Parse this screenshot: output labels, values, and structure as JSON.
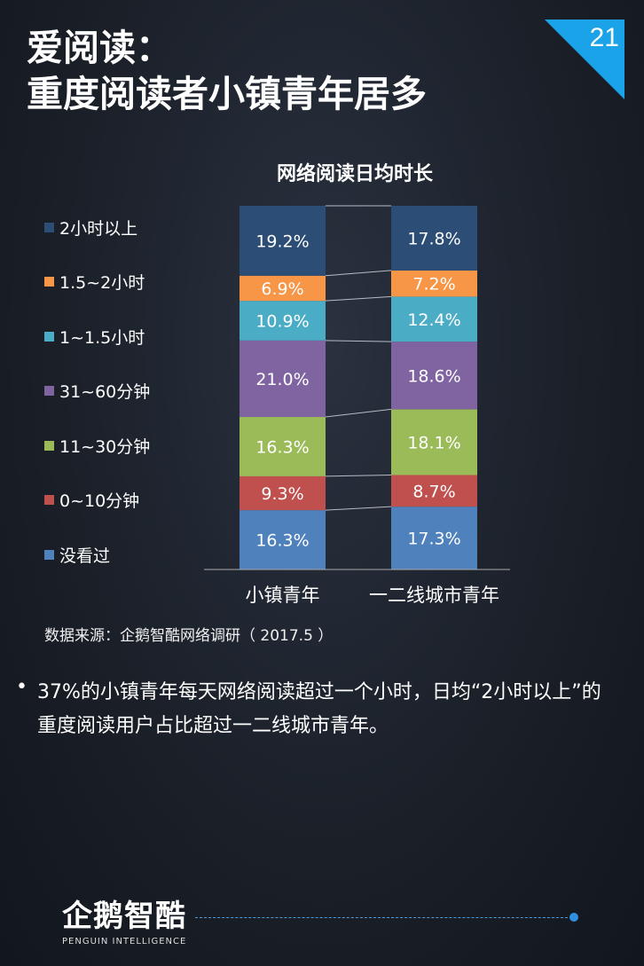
{
  "page": {
    "title_line1": "爱阅读：",
    "title_line2": "重度阅读者小镇青年居多",
    "page_number": "21"
  },
  "chart_data": {
    "type": "stacked-bar",
    "title": "网络阅读日均时长",
    "categories": [
      "小镇青年",
      "一二线城市青年"
    ],
    "series": [
      {
        "name": "没看过",
        "color": "#4f81bd",
        "values": [
          16.3,
          17.3
        ]
      },
      {
        "name": "0~10分钟",
        "color": "#c0504d",
        "values": [
          9.3,
          8.7
        ]
      },
      {
        "name": "11~30分钟",
        "color": "#9bbb59",
        "values": [
          16.3,
          18.1
        ]
      },
      {
        "name": "31~60分钟",
        "color": "#8064a2",
        "values": [
          21.0,
          18.6
        ]
      },
      {
        "name": "1~1.5小时",
        "color": "#4bacc6",
        "values": [
          10.9,
          12.4
        ]
      },
      {
        "name": "1.5~2小时",
        "color": "#f79646",
        "values": [
          6.9,
          7.2
        ]
      },
      {
        "name": "2小时以上",
        "color": "#2c4d75",
        "values": [
          19.2,
          17.8
        ]
      }
    ],
    "value_labels": [
      [
        "16.3%",
        "9.3%",
        "16.3%",
        "21.0%",
        "10.9%",
        "6.9%",
        "19.2%"
      ],
      [
        "17.3%",
        "8.7%",
        "18.1%",
        "18.6%",
        "12.4%",
        "7.2%",
        "17.8%"
      ]
    ],
    "legend_position": "left",
    "source": "数据来源：企鹅智酷网络调研（  2017.5 ）"
  },
  "note": {
    "bullet": "•",
    "text": "37%的小镇青年每天网络阅读超过一个小时，日均“2小时以上”的重度阅读用户占比超过一二线城市青年。"
  },
  "logo": {
    "name": "企鹅智酷",
    "tagline": "PENGUIN INTELLIGENCE"
  }
}
